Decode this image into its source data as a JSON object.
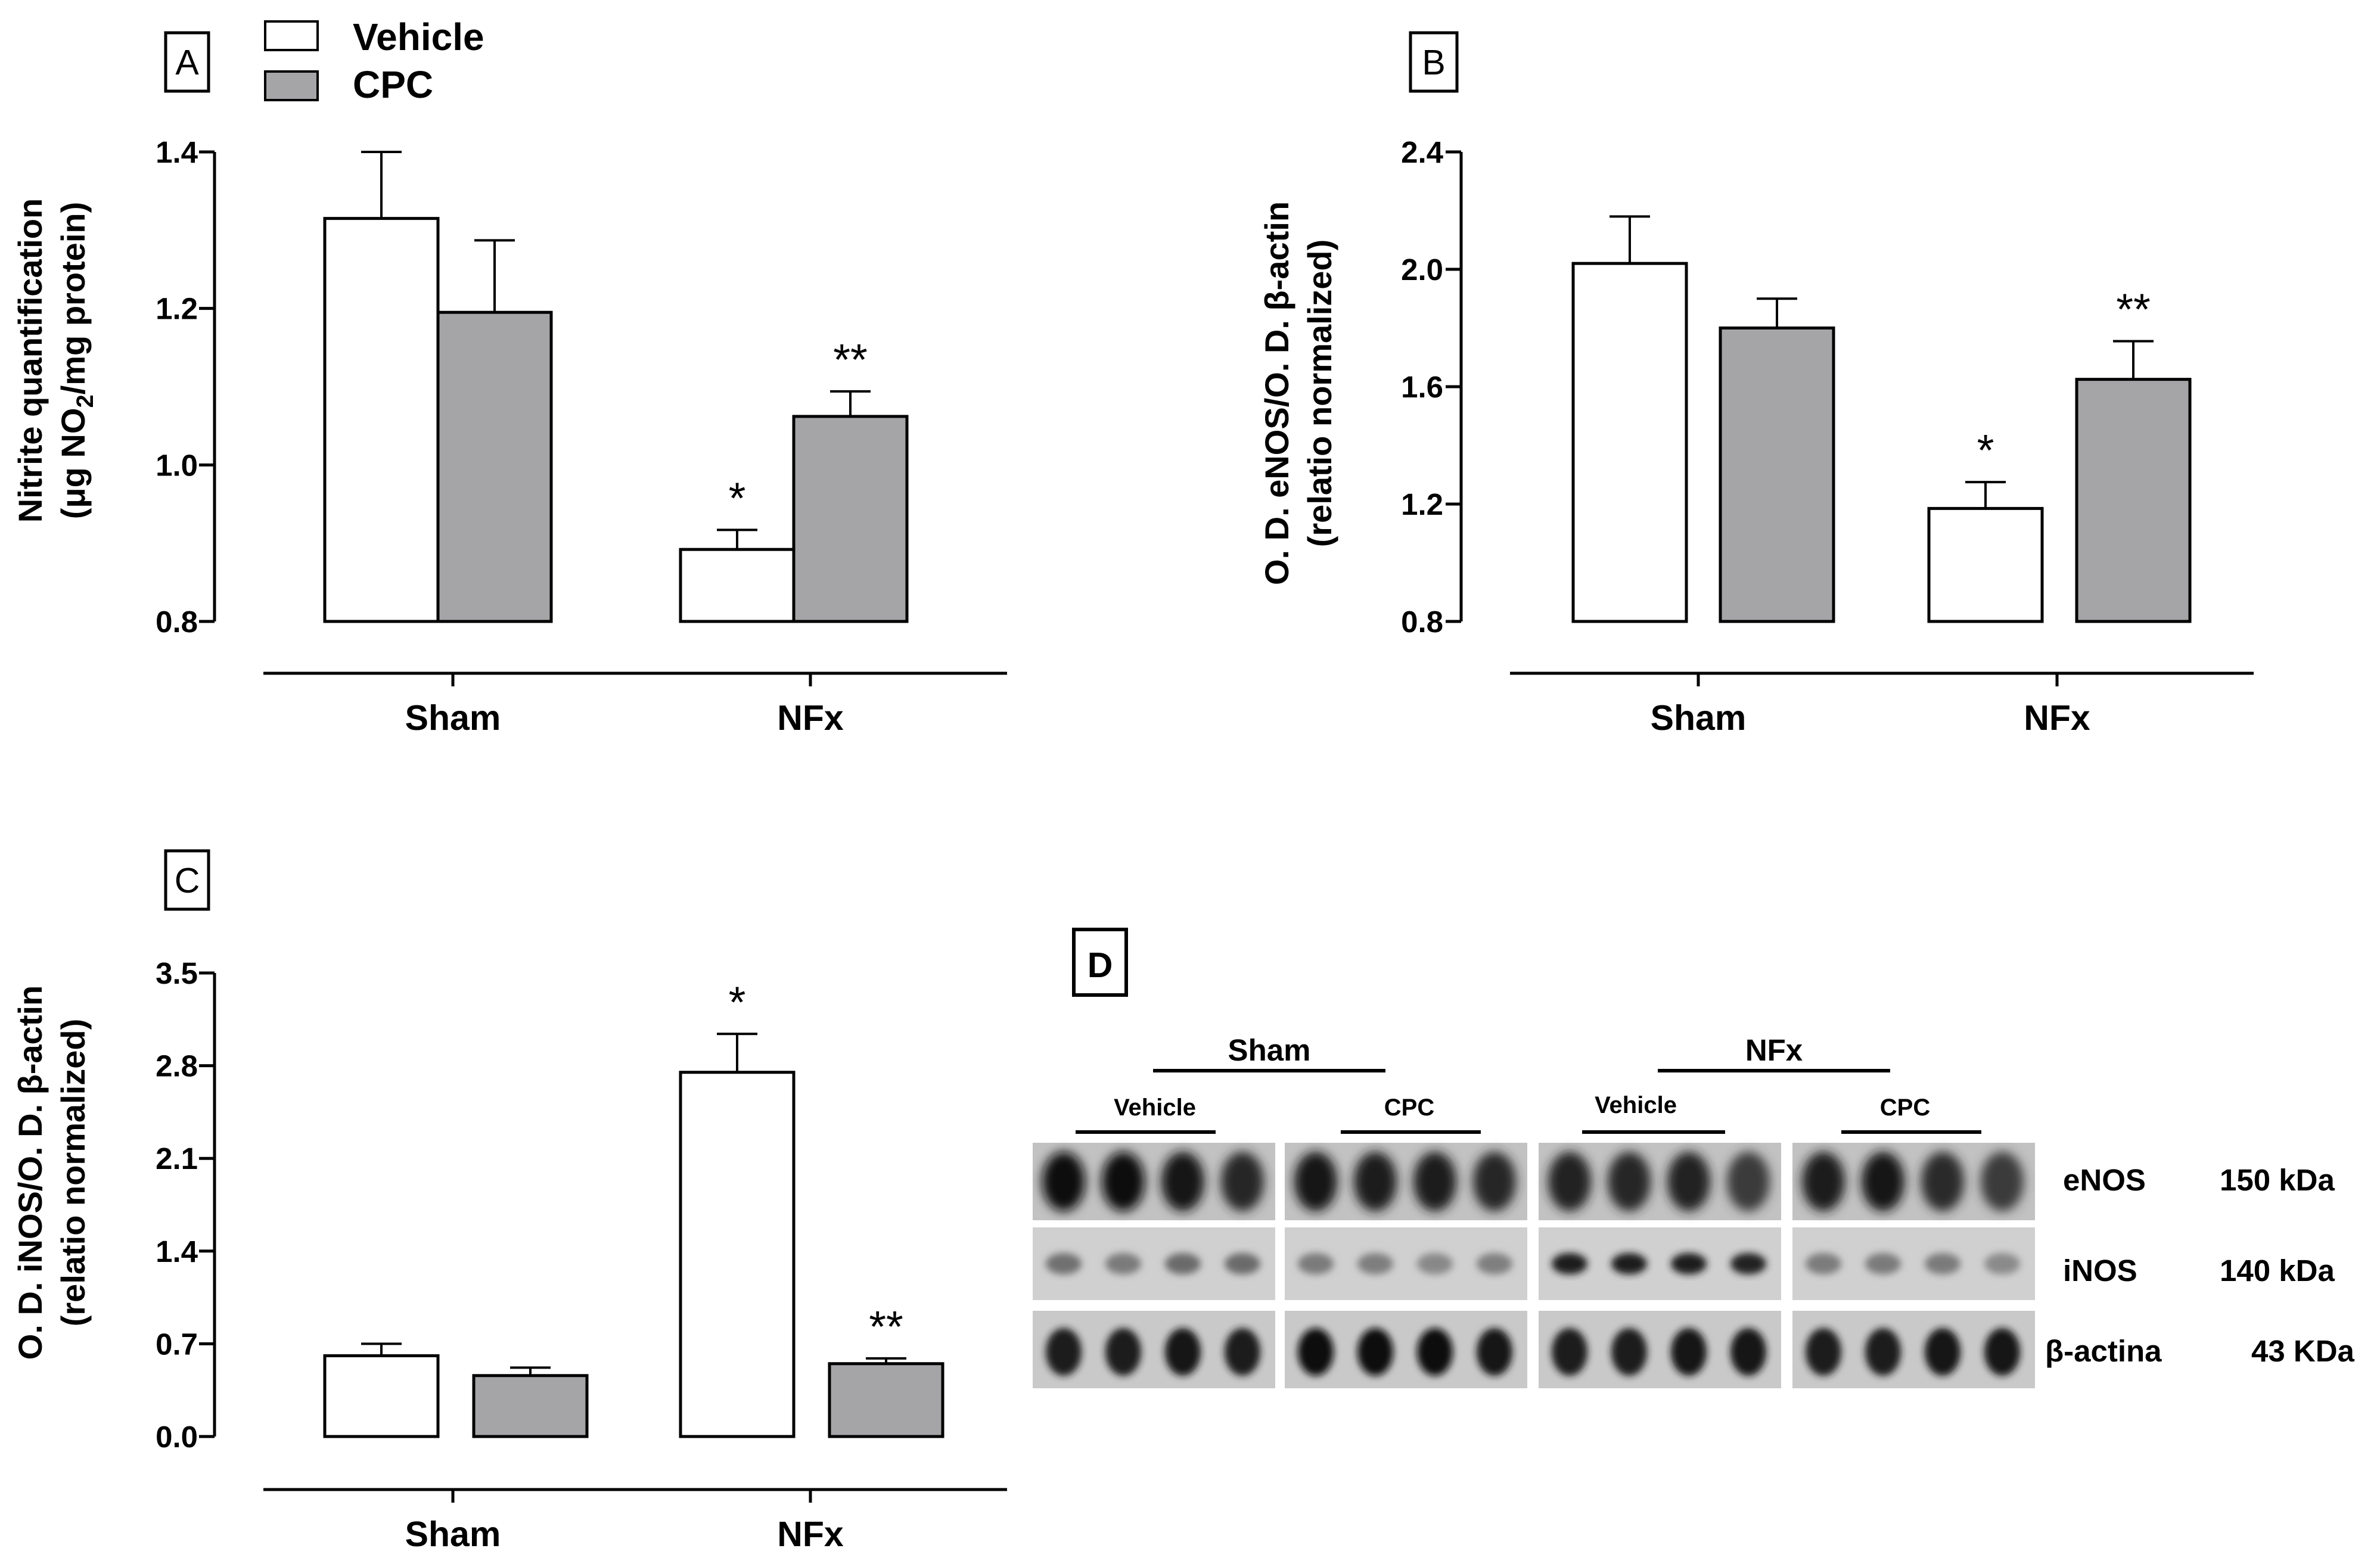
{
  "legend": {
    "items": [
      {
        "label": "Vehicle",
        "color": "#ffffff"
      },
      {
        "label": "CPC",
        "color": "#a5a5a8"
      }
    ]
  },
  "chart_data": [
    {
      "panel": "A",
      "type": "bar",
      "ylabel": [
        "Nitrite quantification",
        "(μg NO",
        "2",
        "/mg protein)"
      ],
      "ylim": [
        0.8,
        1.4
      ],
      "yticks": [
        "0.8",
        "1.0",
        "1.2",
        "1.4"
      ],
      "categories": [
        "Sham",
        "NFx"
      ],
      "series": [
        {
          "name": "Vehicle",
          "values": [
            1.315,
            0.892
          ],
          "errors": [
            0.085,
            0.025
          ],
          "marks": [
            "",
            "*"
          ]
        },
        {
          "name": "CPC",
          "values": [
            1.195,
            1.062
          ],
          "errors": [
            0.092,
            0.032
          ],
          "marks": [
            "",
            "**"
          ]
        }
      ]
    },
    {
      "panel": "B",
      "type": "bar",
      "ylabel": [
        "O. D. eNOS/O. D. β-actin",
        "(relatio normalized)"
      ],
      "ylim": [
        0.8,
        2.4
      ],
      "yticks": [
        "0.8",
        "1.2",
        "1.6",
        "2.0",
        "2.4"
      ],
      "categories": [
        "Sham",
        "NFx"
      ],
      "series": [
        {
          "name": "Vehicle",
          "values": [
            2.02,
            1.185
          ],
          "errors": [
            0.16,
            0.09
          ],
          "marks": [
            "",
            "*"
          ]
        },
        {
          "name": "CPC",
          "values": [
            1.8,
            1.625
          ],
          "errors": [
            0.1,
            0.13
          ],
          "marks": [
            "",
            "**"
          ]
        }
      ]
    },
    {
      "panel": "C",
      "type": "bar",
      "ylabel": [
        "O. D. iNOS/O. D. β-actin",
        "(relatio normalized)"
      ],
      "ylim": [
        0.0,
        3.5
      ],
      "yticks": [
        "0.0",
        "0.7",
        "1.4",
        "2.1",
        "2.8",
        "3.5"
      ],
      "categories": [
        "Sham",
        "NFx"
      ],
      "series": [
        {
          "name": "Vehicle",
          "values": [
            0.61,
            2.75
          ],
          "errors": [
            0.09,
            0.29
          ],
          "marks": [
            "",
            "*"
          ]
        },
        {
          "name": "CPC",
          "values": [
            0.46,
            0.55
          ],
          "errors": [
            0.06,
            0.04
          ],
          "marks": [
            "",
            "**"
          ]
        }
      ]
    }
  ],
  "blot": {
    "panel": "D",
    "groups": [
      "Sham",
      "NFx"
    ],
    "subgroups": [
      "Vehicle",
      "CPC",
      "Vehicle",
      "CPC"
    ],
    "rows": [
      {
        "protein": "eNOS",
        "size": "150 kDa"
      },
      {
        "protein": "iNOS",
        "size": "140 kDa"
      },
      {
        "protein": "β-actina",
        "size": "43 KDa"
      }
    ]
  }
}
